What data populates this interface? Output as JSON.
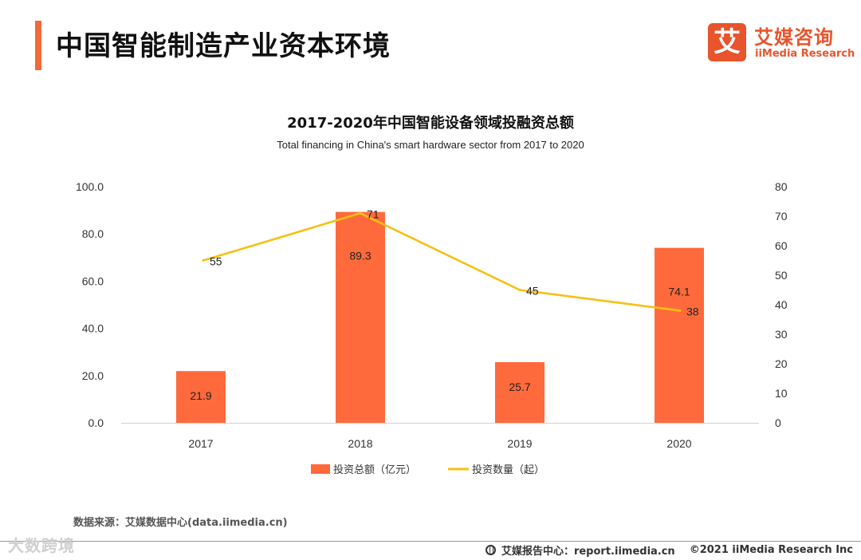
{
  "header": {
    "title": "中国智能制造产业资本环境"
  },
  "logo": {
    "mark": "艾",
    "cn": "艾媒咨询",
    "en": "iiMedia Research"
  },
  "chart_data": {
    "type": "bar+line",
    "title": "2017-2020年中国智能设备领域投融资总额",
    "subtitle": "Total financing in China's smart hardware sector from 2017 to 2020",
    "categories": [
      "2017",
      "2018",
      "2019",
      "2020"
    ],
    "series": [
      {
        "name": "投资总额（亿元）",
        "type": "bar",
        "axis": "left",
        "values": [
          21.9,
          89.3,
          25.7,
          74.1
        ],
        "labels": [
          "21.9",
          "89.3",
          "25.7",
          "74.1"
        ],
        "color": "#ff6a3c"
      },
      {
        "name": "投资数量（起）",
        "type": "line",
        "axis": "right",
        "values": [
          55,
          71,
          45,
          38
        ],
        "labels": [
          "55",
          "71",
          "45",
          "38"
        ],
        "color": "#f5c013"
      }
    ],
    "y_left": {
      "range": [
        0,
        100
      ],
      "ticks": [
        0,
        20,
        40,
        60,
        80,
        100
      ],
      "tick_labels": [
        "0.0",
        "20.0",
        "40.0",
        "60.0",
        "80.0",
        "100.0"
      ]
    },
    "y_right": {
      "range": [
        0,
        80
      ],
      "ticks": [
        0,
        10,
        20,
        30,
        40,
        50,
        60,
        70,
        80
      ],
      "tick_labels": [
        "0",
        "10",
        "20",
        "30",
        "40",
        "50",
        "60",
        "70",
        "80"
      ]
    },
    "legend": [
      "投资总额（亿元）",
      "投资数量（起）"
    ],
    "legend_position": "bottom",
    "grid": false
  },
  "footer": {
    "source": "数据来源：艾媒数据中心(data.iimedia.cn)",
    "report_center": "艾媒报告中心：report.iimedia.cn",
    "copyright": "©2021  iiMedia Research  Inc",
    "watermark": "大数跨境"
  }
}
